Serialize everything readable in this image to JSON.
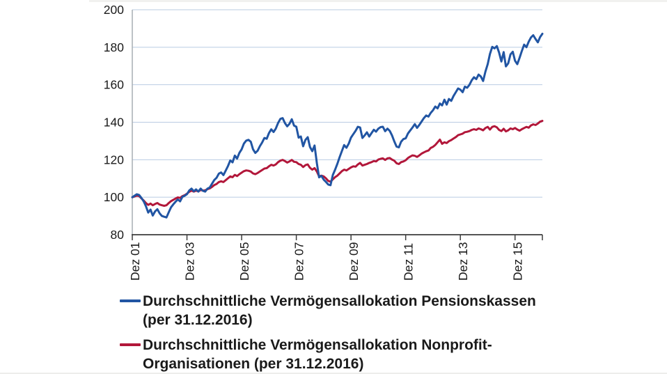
{
  "page": {
    "background": "#ffffff"
  },
  "colors": {
    "series_pensionskassen": "#2155A3",
    "series_nonprofit": "#B2173A",
    "gridline": "#b9cbe2",
    "y_axis_line": "#a7adb4",
    "x_axis_line": "#3c3c3c",
    "tick": "#3c3c3c",
    "label_text": "#1a1a1a"
  },
  "legend": {
    "item1_line1": "Durchschnittliche Vermögensallokation Pensionskassen",
    "item1_line2": "(per 31.12.2016)",
    "item2_line1": "Durchschnittliche Vermögensallokation Nonprofit-",
    "item2_line2": "Organisationen (per 31.12.2016)"
  },
  "chart_data": {
    "type": "line",
    "title": "",
    "x_axis_note": "monthly index values, Dez 2001 = 100, through Dez 2016",
    "x_tick_labels": [
      "Dez 01",
      "Dez 03",
      "Dez 05",
      "Dez 07",
      "Dez 09",
      "Dez 11",
      "Dez 13",
      "Dez 15"
    ],
    "x_tick_months": [
      0,
      24,
      48,
      72,
      96,
      120,
      144,
      168
    ],
    "x_end_tick_month": 180,
    "months_total": 180,
    "y_ticks": [
      80,
      100,
      120,
      140,
      160,
      180,
      200
    ],
    "ylim": [
      80,
      200
    ],
    "grid": true,
    "legend_position": "bottom-left",
    "series": [
      {
        "name": "Durchschnittliche Vermögensallokation Pensionskassen (per 31.12.2016)",
        "color": "#2155A3",
        "values": [
          100.0,
          100.8,
          101.6,
          101.2,
          99.6,
          97.8,
          95.2,
          91.8,
          93.4,
          90.2,
          92.4,
          93.6,
          91.4,
          90.0,
          89.6,
          89.2,
          92.0,
          94.6,
          96.2,
          97.6,
          98.8,
          97.8,
          100.2,
          100.8,
          101.6,
          103.6,
          104.6,
          103.2,
          104.2,
          103.0,
          104.6,
          103.4,
          103.0,
          104.6,
          105.2,
          107.2,
          109.2,
          110.4,
          112.6,
          113.2,
          111.8,
          114.2,
          116.6,
          119.6,
          118.6,
          122.2,
          120.6,
          123.6,
          125.6,
          128.6,
          130.2,
          130.6,
          129.6,
          125.6,
          123.6,
          124.8,
          127.2,
          129.2,
          131.6,
          131.2,
          134.2,
          136.2,
          134.8,
          136.6,
          139.6,
          141.8,
          142.2,
          139.6,
          137.8,
          139.2,
          141.6,
          138.2,
          137.6,
          131.8,
          132.4,
          127.2,
          130.6,
          132.0,
          126.8,
          124.6,
          127.6,
          118.2,
          110.6,
          111.4,
          109.4,
          108.2,
          106.8,
          106.4,
          111.8,
          114.6,
          117.8,
          121.4,
          124.6,
          127.8,
          126.4,
          128.6,
          131.8,
          133.6,
          135.4,
          137.6,
          137.2,
          131.6,
          133.0,
          134.6,
          132.4,
          134.2,
          136.0,
          135.0,
          136.6,
          137.4,
          137.6,
          135.2,
          136.6,
          135.4,
          133.0,
          129.8,
          127.0,
          126.6,
          129.6,
          131.0,
          131.4,
          134.0,
          135.6,
          137.2,
          139.0,
          137.0,
          138.6,
          140.4,
          142.2,
          143.6,
          143.0,
          145.0,
          146.4,
          148.4,
          147.4,
          150.0,
          149.0,
          152.0,
          149.4,
          152.4,
          151.4,
          154.0,
          156.0,
          158.0,
          157.4,
          156.0,
          159.0,
          158.4,
          160.0,
          162.4,
          164.0,
          163.0,
          165.4,
          164.4,
          162.0,
          167.0,
          171.0,
          176.4,
          180.2,
          179.4,
          180.6,
          177.2,
          172.4,
          177.4,
          169.8,
          171.4,
          176.2,
          177.6,
          172.8,
          171.0,
          174.4,
          178.0,
          181.4,
          180.0,
          183.0,
          185.2,
          186.4,
          184.4,
          182.6,
          185.4,
          187.2
        ]
      },
      {
        "name": "Durchschnittliche Vermögensallokation Nonprofit-Organisationen (per 31.12.2016)",
        "color": "#B2173A",
        "values": [
          100.0,
          100.4,
          100.9,
          100.6,
          99.4,
          98.2,
          96.9,
          95.9,
          96.6,
          95.7,
          96.4,
          96.9,
          96.1,
          95.7,
          95.4,
          95.7,
          96.9,
          97.9,
          98.6,
          99.3,
          99.9,
          99.6,
          100.6,
          101.1,
          101.9,
          102.9,
          103.5,
          103.0,
          103.5,
          103.1,
          103.9,
          103.5,
          103.7,
          104.3,
          104.7,
          105.5,
          106.5,
          107.1,
          108.1,
          108.5,
          108.1,
          109.1,
          110.1,
          111.1,
          110.7,
          111.9,
          111.3,
          112.3,
          113.1,
          113.9,
          114.3,
          114.1,
          113.7,
          112.7,
          112.3,
          112.9,
          113.7,
          114.5,
          115.3,
          115.5,
          116.5,
          117.3,
          116.9,
          117.5,
          118.7,
          119.5,
          119.9,
          119.3,
          118.5,
          119.1,
          119.9,
          118.9,
          118.7,
          117.7,
          117.3,
          116.1,
          117.1,
          117.5,
          115.7,
          114.7,
          115.5,
          113.7,
          111.1,
          111.5,
          111.1,
          110.1,
          108.7,
          108.3,
          109.5,
          110.7,
          111.5,
          112.7,
          113.9,
          114.7,
          114.3,
          115.1,
          115.9,
          116.5,
          116.3,
          117.5,
          118.3,
          116.9,
          117.3,
          117.7,
          118.3,
          118.7,
          119.3,
          119.1,
          120.1,
          120.5,
          120.7,
          119.9,
          120.7,
          120.9,
          120.1,
          119.5,
          118.1,
          117.7,
          118.7,
          119.1,
          119.7,
          120.9,
          121.7,
          122.3,
          122.1,
          121.5,
          122.3,
          123.3,
          123.9,
          124.5,
          124.9,
          126.3,
          126.9,
          127.9,
          129.3,
          130.7,
          128.5,
          129.3,
          128.9,
          129.9,
          130.5,
          131.3,
          132.1,
          133.1,
          133.5,
          133.9,
          134.7,
          134.9,
          135.3,
          135.9,
          136.3,
          135.9,
          136.7,
          136.3,
          135.7,
          136.9,
          137.5,
          136.1,
          137.5,
          137.9,
          137.3,
          135.9,
          135.3,
          136.5,
          135.1,
          135.7,
          136.7,
          136.3,
          136.9,
          136.1,
          135.5,
          136.3,
          136.9,
          137.5,
          137.1,
          138.3,
          138.9,
          138.5,
          139.3,
          140.3,
          140.7
        ]
      }
    ]
  }
}
